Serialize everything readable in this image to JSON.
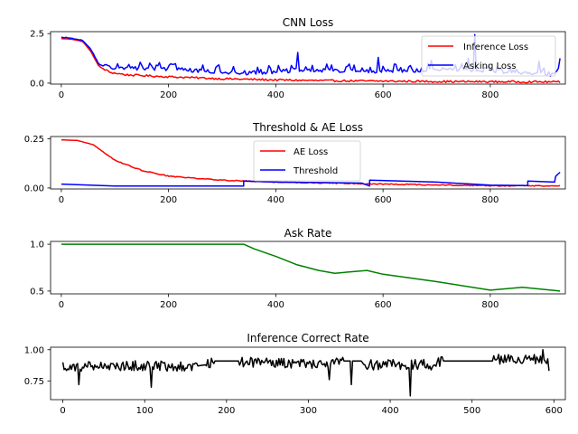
{
  "chart_data": [
    {
      "type": "line",
      "title": "CNN Loss",
      "xlim": [
        -20,
        940
      ],
      "ylim": [
        -0.05,
        2.6
      ],
      "xticks": [
        0,
        200,
        400,
        600,
        800
      ],
      "yticks": [
        0.0,
        2.5
      ],
      "ytick_labels": [
        "0.0",
        "2.5"
      ],
      "legend": "top-right",
      "series": [
        {
          "name": "Inference Loss",
          "color": "#ff0000",
          "generator": "decay",
          "points": [
            [
              0,
              2.25
            ],
            [
              20,
              2.22
            ],
            [
              40,
              2.1
            ],
            [
              55,
              1.6
            ],
            [
              70,
              0.85
            ],
            [
              90,
              0.55
            ],
            [
              120,
              0.42
            ],
            [
              200,
              0.32
            ],
            [
              300,
              0.22
            ],
            [
              400,
              0.16
            ],
            [
              500,
              0.12
            ],
            [
              600,
              0.1
            ],
            [
              700,
              0.08
            ],
            [
              800,
              0.07
            ],
            [
              930,
              0.06
            ]
          ],
          "noise": 0.08
        },
        {
          "name": "Asking Loss",
          "color": "#0000ff",
          "generator": "noisy",
          "points": [
            [
              0,
              2.3
            ],
            [
              20,
              2.25
            ],
            [
              40,
              2.15
            ],
            [
              55,
              1.7
            ],
            [
              70,
              0.95
            ],
            [
              90,
              0.7
            ],
            [
              150,
              0.65
            ],
            [
              250,
              0.55
            ],
            [
              340,
              0.4
            ],
            [
              450,
              0.55
            ],
            [
              600,
              0.5
            ],
            [
              750,
              0.6
            ],
            [
              850,
              0.45
            ],
            [
              930,
              0.3
            ]
          ],
          "noise": 0.45,
          "spikes": [
            [
              440,
              1.55
            ],
            [
              590,
              1.3
            ],
            [
              690,
              1.15
            ],
            [
              760,
              1.25
            ],
            [
              770,
              2.45
            ],
            [
              890,
              1.1
            ],
            [
              930,
              1.25
            ]
          ]
        }
      ]
    },
    {
      "type": "line",
      "title": "Threshold & AE Loss",
      "xlim": [
        -20,
        940
      ],
      "ylim": [
        -0.005,
        0.262
      ],
      "xticks": [
        0,
        200,
        400,
        600,
        800
      ],
      "yticks": [
        0.0,
        0.25
      ],
      "ytick_labels": [
        "0.00",
        "0.25"
      ],
      "legend": "upper-center",
      "series": [
        {
          "name": "AE Loss",
          "color": "#ff0000",
          "generator": "decay",
          "points": [
            [
              0,
              0.245
            ],
            [
              30,
              0.242
            ],
            [
              60,
              0.22
            ],
            [
              100,
              0.14
            ],
            [
              150,
              0.09
            ],
            [
              200,
              0.06
            ],
            [
              300,
              0.04
            ],
            [
              400,
              0.03
            ],
            [
              500,
              0.025
            ],
            [
              600,
              0.02
            ],
            [
              700,
              0.015
            ],
            [
              800,
              0.012
            ],
            [
              930,
              0.01
            ]
          ],
          "noise": 0.004
        },
        {
          "name": "Threshold",
          "color": "#0000ff",
          "generator": "step",
          "points": [
            [
              0,
              0.02
            ],
            [
              100,
              0.01
            ],
            [
              340,
              0.01
            ],
            [
              340,
              0.035
            ],
            [
              400,
              0.03
            ],
            [
              560,
              0.025
            ],
            [
              575,
              0.01
            ],
            [
              575,
              0.04
            ],
            [
              700,
              0.03
            ],
            [
              800,
              0.015
            ],
            [
              870,
              0.012
            ],
            [
              870,
              0.035
            ],
            [
              920,
              0.03
            ],
            [
              922,
              0.06
            ],
            [
              930,
              0.08
            ]
          ]
        }
      ]
    },
    {
      "type": "line",
      "title": "Ask Rate",
      "xlim": [
        -20,
        940
      ],
      "ylim": [
        0.47,
        1.03
      ],
      "xticks": [
        0,
        200,
        400,
        600,
        800
      ],
      "yticks": [
        0.5,
        1.0
      ],
      "ytick_labels": [
        "0.5",
        "1.0"
      ],
      "series": [
        {
          "color": "#008000",
          "generator": "step",
          "points": [
            [
              0,
              1.0
            ],
            [
              340,
              1.0
            ],
            [
              360,
              0.95
            ],
            [
              400,
              0.87
            ],
            [
              440,
              0.78
            ],
            [
              480,
              0.72
            ],
            [
              510,
              0.69
            ],
            [
              570,
              0.72
            ],
            [
              600,
              0.68
            ],
            [
              700,
              0.6
            ],
            [
              800,
              0.51
            ],
            [
              860,
              0.54
            ],
            [
              930,
              0.5
            ]
          ]
        }
      ]
    },
    {
      "type": "line",
      "title": "Inference Correct Rate",
      "xlim": [
        -15,
        614
      ],
      "ylim": [
        0.6,
        1.02
      ],
      "xticks": [
        0,
        100,
        200,
        300,
        400,
        500,
        600
      ],
      "yticks": [
        0.75,
        1.0
      ],
      "ytick_labels": [
        "0.75",
        "1.00"
      ],
      "series": [
        {
          "color": "#000000",
          "generator": "noisy-segments",
          "points": [
            [
              0,
              0.87
            ],
            [
              165,
              0.87
            ],
            [
              175,
              0.88
            ],
            [
              185,
              0.91
            ],
            [
              215,
              0.91
            ],
            [
              225,
              0.9
            ],
            [
              305,
              0.89
            ],
            [
              340,
              0.9
            ],
            [
              345,
              0.91
            ],
            [
              365,
              0.91
            ],
            [
              370,
              0.88
            ],
            [
              455,
              0.88
            ],
            [
              465,
              0.91
            ],
            [
              525,
              0.91
            ],
            [
              530,
              0.92
            ],
            [
              595,
              0.92
            ]
          ],
          "noise": 0.07,
          "flat": [
            [
              165,
              175
            ],
            [
              185,
              215
            ],
            [
              345,
              365
            ],
            [
              465,
              525
            ]
          ],
          "spikes": [
            [
              20,
              0.72
            ],
            [
              108,
              0.7
            ],
            [
              325,
              0.76
            ],
            [
              352,
              0.72
            ],
            [
              424,
              0.63
            ],
            [
              586,
              1.0
            ],
            [
              596,
              0.83
            ]
          ]
        }
      ]
    }
  ]
}
